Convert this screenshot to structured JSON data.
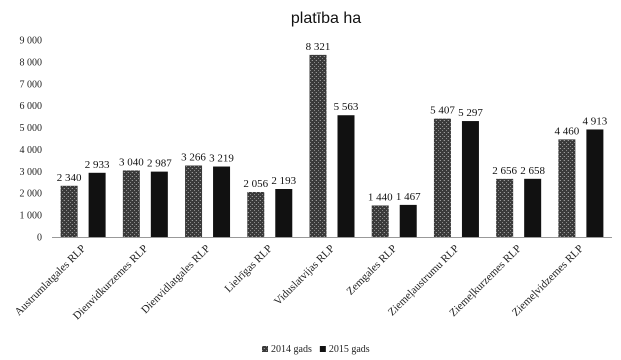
{
  "chart_data": {
    "type": "bar",
    "title": "platība ha",
    "categories": [
      "Austrumlatgales RLP",
      "Dienvidkurzemes RLP",
      "Dienvidlatgales RLP",
      "Lielrīgas RLP",
      "Viduslatvijas RLP",
      "Zemgales RLP",
      "Ziemeļaustrumu RLP",
      "Ziemeļkurzemes RLP",
      "Ziemeļvidzemes RLP"
    ],
    "series": [
      {
        "name": "2014 gads",
        "values": [
          2340,
          3040,
          3266,
          2056,
          8321,
          1440,
          5407,
          2656,
          4460
        ],
        "labels": [
          "2 340",
          "3 040",
          "3 266",
          "2 056",
          "8 321",
          "1 440",
          "5 407",
          "2 656",
          "4 460"
        ],
        "color": "#2b2b2b",
        "pattern": "speckled"
      },
      {
        "name": "2015 gads",
        "values": [
          2933,
          2987,
          3219,
          2193,
          5563,
          1467,
          5297,
          2658,
          4913
        ],
        "labels": [
          "2 933",
          "2 987",
          "3 219",
          "2 193",
          "5 563",
          "1 467",
          "5 297",
          "2 658",
          "4 913"
        ],
        "color": "#111111",
        "pattern": "solid"
      }
    ],
    "ylim": [
      0,
      9000
    ],
    "yticks": [
      0,
      1000,
      2000,
      3000,
      4000,
      5000,
      6000,
      7000,
      8000,
      9000
    ],
    "ytick_labels": [
      "0",
      "1 000",
      "2 000",
      "3 000",
      "4 000",
      "5 000",
      "6 000",
      "7 000",
      "8 000",
      "9 000"
    ],
    "grid": false,
    "legend": "bottom"
  }
}
